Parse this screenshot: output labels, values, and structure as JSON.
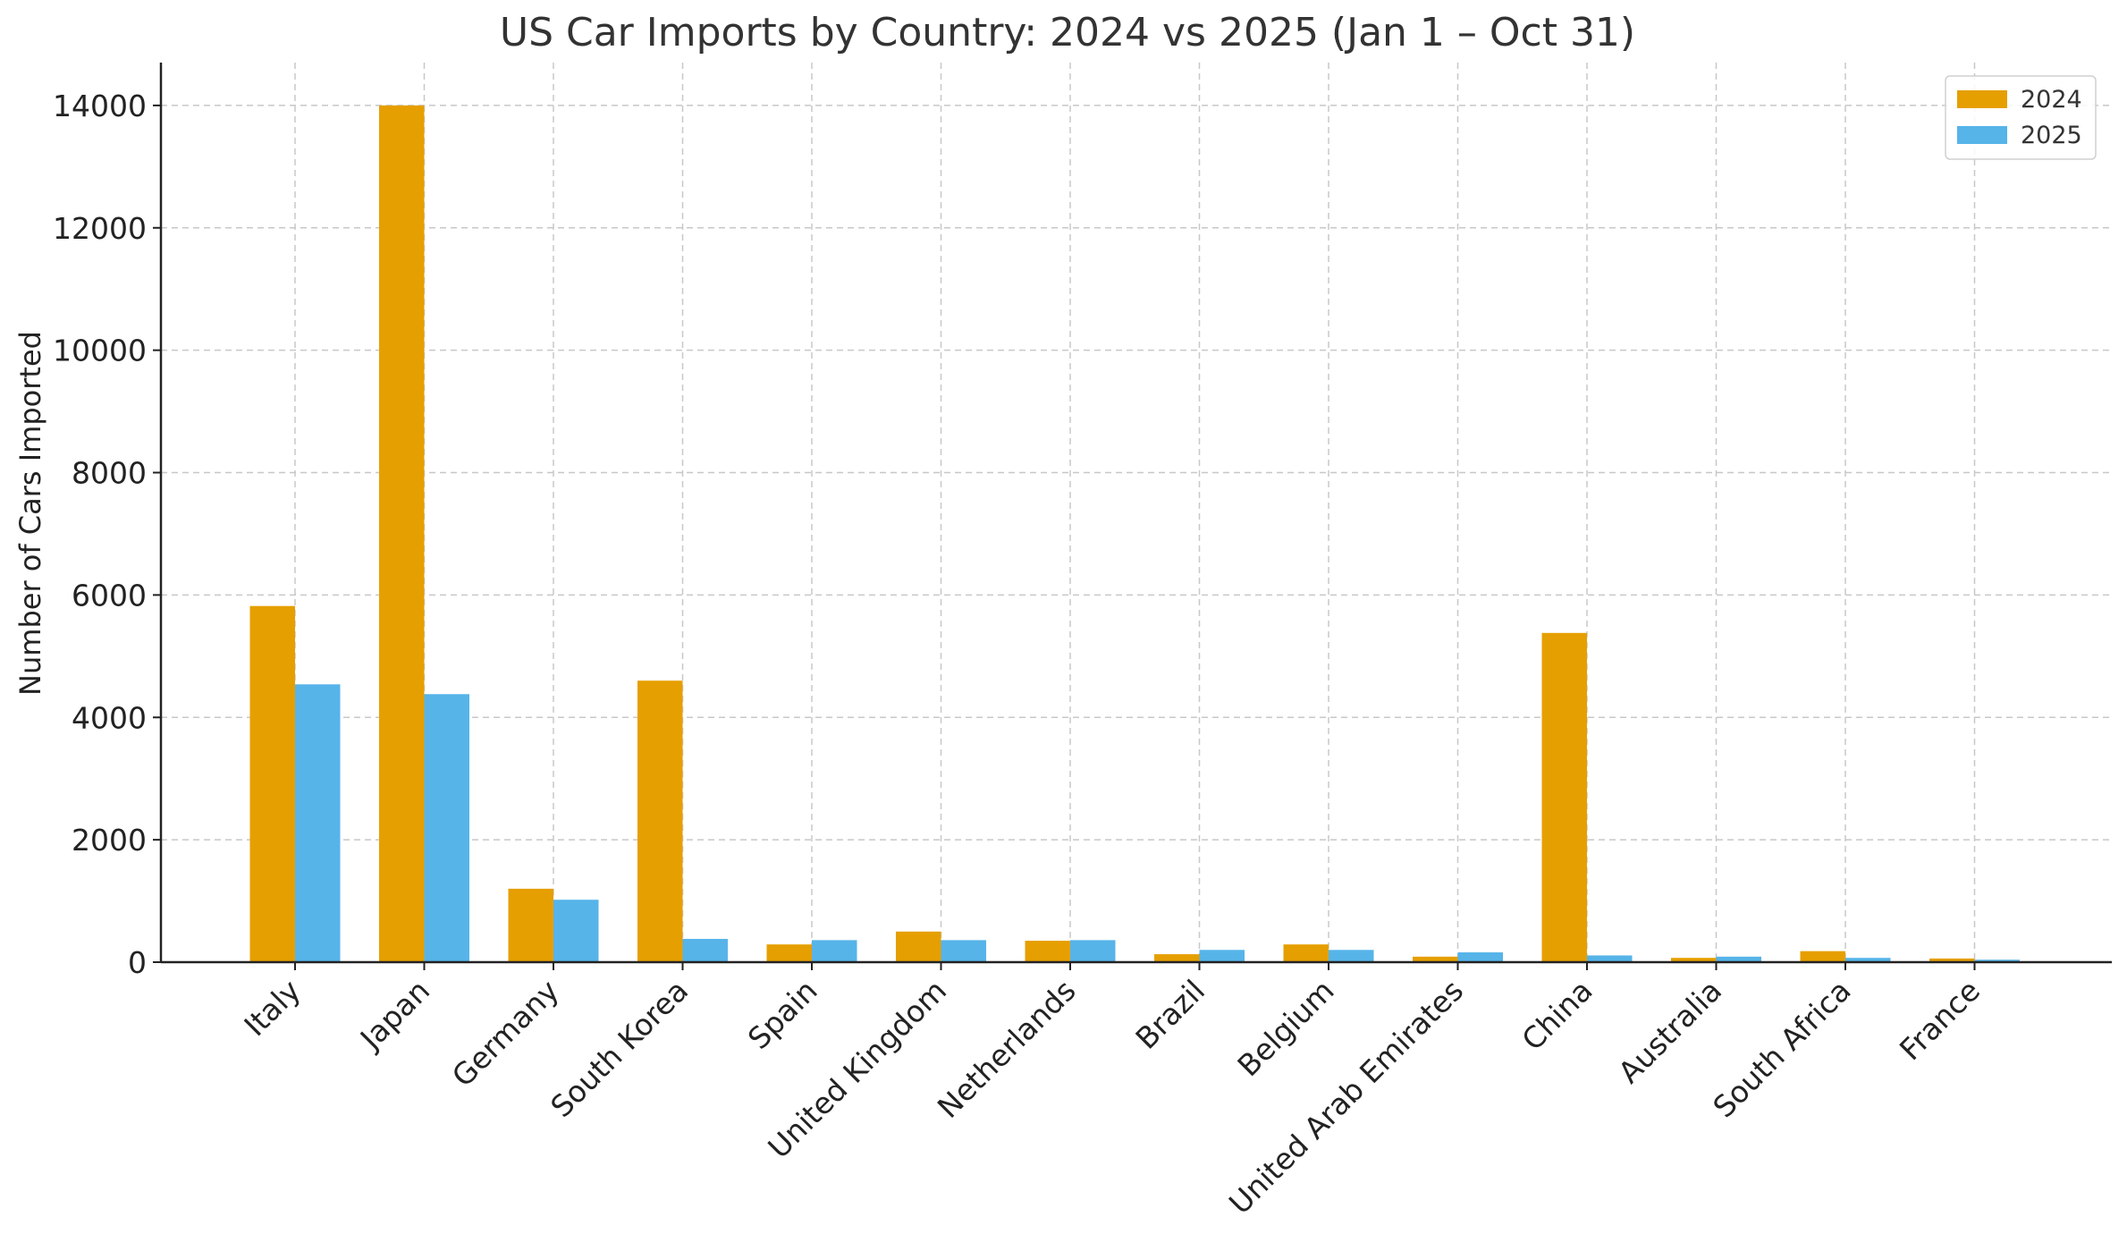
{
  "chart_data": {
    "type": "bar",
    "title": "US Car Imports by Country: 2024 vs 2025 (Jan 1 – Oct 31)",
    "xlabel": "",
    "ylabel": "Number of Cars Imported",
    "ylim": [
      0,
      14700
    ],
    "yticks": [
      0,
      2000,
      4000,
      6000,
      8000,
      10000,
      12000,
      14000
    ],
    "grid": true,
    "legend_position": "top-right",
    "categories": [
      "Italy",
      "Japan",
      "Germany",
      "South Korea",
      "Spain",
      "United Kingdom",
      "Netherlands",
      "Brazil",
      "Belgium",
      "United Arab Emirates",
      "China",
      "Australia",
      "South Africa",
      "France"
    ],
    "series": [
      {
        "name": "2024",
        "color": "#E69F00",
        "values": [
          5820,
          14000,
          1200,
          4600,
          290,
          500,
          350,
          130,
          290,
          90,
          5380,
          70,
          180,
          60
        ]
      },
      {
        "name": "2025",
        "color": "#56B4E9",
        "values": [
          4540,
          4380,
          1020,
          380,
          360,
          360,
          360,
          200,
          200,
          160,
          110,
          90,
          70,
          40
        ]
      }
    ]
  }
}
